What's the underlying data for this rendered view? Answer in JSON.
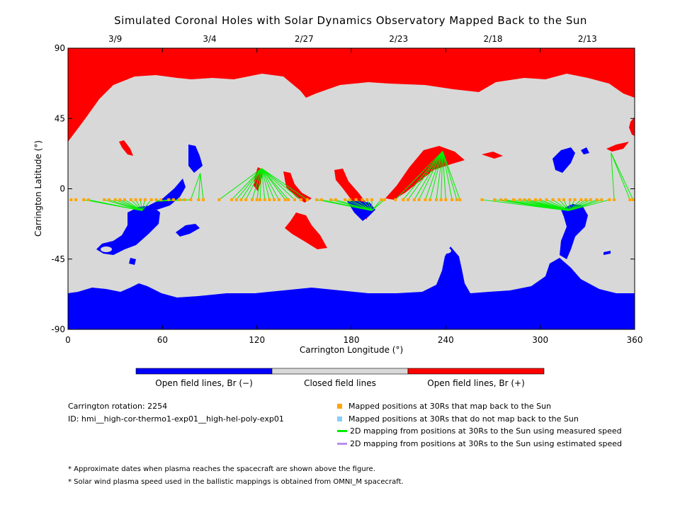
{
  "title": "Simulated Coronal Holes with Solar Dynamics Observatory Mapped Back to the Sun",
  "chart_data": {
    "type": "map",
    "xlabel": "Carrington Longitude (°)",
    "ylabel": "Carrington Latitude (°)",
    "xlim": [
      0,
      360
    ],
    "ylim": [
      -90,
      90
    ],
    "xticks": [
      0,
      60,
      120,
      180,
      240,
      300,
      360
    ],
    "yticks": [
      90,
      45,
      0,
      -45,
      -90
    ],
    "top_dates": [
      {
        "label": "3/9",
        "lon": 30
      },
      {
        "label": "3/4",
        "lon": 90
      },
      {
        "label": "2/27",
        "lon": 150
      },
      {
        "label": "2/23",
        "lon": 210
      },
      {
        "label": "2/18",
        "lon": 270
      },
      {
        "label": "2/13",
        "lon": 330
      }
    ],
    "colorbar": [
      "Open field lines, Br (−)",
      "Closed field lines",
      "Open field lines, Br (+)"
    ],
    "colors": {
      "negative": "#0000ff",
      "closed": "#d8d8d8",
      "positive": "#ff0000",
      "mapped": "#ffa500",
      "unmapped": "#87cefa",
      "measured": "#00ee00",
      "estimated": "#b98ef0"
    },
    "spacecraft_latitude": -7,
    "mapped_longitudes": [
      2,
      5,
      10,
      13,
      23,
      26,
      30,
      33,
      36,
      40,
      43,
      46,
      49,
      53,
      56,
      59,
      64,
      67,
      71,
      74,
      78,
      83,
      86,
      96,
      104,
      107,
      110,
      113,
      117,
      120,
      122,
      125,
      128,
      131,
      134,
      138,
      140,
      144,
      148,
      152,
      158,
      161,
      167,
      170,
      176,
      179,
      183,
      187,
      190,
      193,
      199,
      201,
      208,
      213,
      216,
      220,
      223,
      227,
      230,
      234,
      237,
      240,
      244,
      247,
      249,
      263,
      271,
      275,
      278,
      283,
      287,
      290,
      293,
      297,
      300,
      304,
      308,
      312,
      315,
      319,
      322,
      326,
      329,
      332,
      336,
      339,
      344,
      347,
      357,
      359
    ],
    "footpoint_groups": [
      {
        "lon": 47,
        "lat": -14,
        "from": [
          10,
          53
        ]
      },
      {
        "lon": 56,
        "lat": -8,
        "from": [
          56,
          78
        ]
      },
      {
        "lon": 84,
        "lat": 10,
        "from": [
          78,
          86
        ]
      },
      {
        "lon": 123,
        "lat": 13,
        "from": [
          96,
          152
        ]
      },
      {
        "lon": 193,
        "lat": -14,
        "from": [
          158,
          201
        ]
      },
      {
        "lon": 238,
        "lat": 24,
        "from": [
          208,
          249
        ]
      },
      {
        "lon": 318,
        "lat": -14,
        "from": [
          263,
          344
        ]
      },
      {
        "lon": 345,
        "lat": 23,
        "from": [
          347,
          359
        ]
      }
    ]
  },
  "legend": {
    "items": [
      {
        "label": "Mapped positions at 30Rs that map back to the Sun",
        "marker": "square",
        "color": "#ffa500"
      },
      {
        "label": "Mapped positions at 30Rs that do not map back to the Sun",
        "marker": "square",
        "color": "#87cefa"
      },
      {
        "label": "2D mapping from positions at 30Rs to the Sun using measured speed",
        "marker": "line",
        "color": "#00ee00"
      },
      {
        "label": "2D mapping from positions at 30Rs to the Sun using estimated speed",
        "marker": "line",
        "color": "#b98ef0"
      }
    ]
  },
  "info": {
    "rotation": "Carrington rotation: 2254",
    "id": "ID: hmi__high-cor-thermo1-exp01__high-hel-poly-exp01"
  },
  "notes": [
    "* Approximate dates when plasma reaches the spacecraft are shown above the figure.",
    "* Solar wind plasma speed used in the ballistic mappings is obtained from OMNI_M spacecraft."
  ]
}
